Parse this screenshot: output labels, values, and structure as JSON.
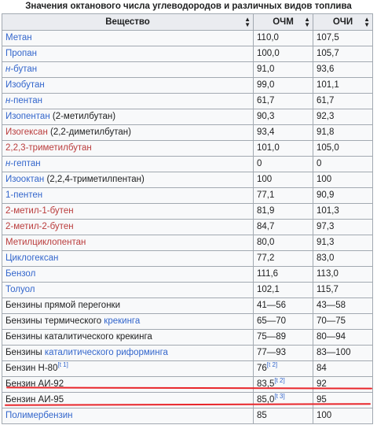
{
  "caption": "Значения октанового числа углеводородов и различных видов топлива",
  "headers": {
    "substance": "Вещество",
    "ron": "ОЧМ",
    "mon": "ОЧИ"
  },
  "rows": [
    {
      "parts": [
        {
          "t": "Метан",
          "c": "lnk"
        }
      ],
      "ron": "110,0",
      "mon": "107,5"
    },
    {
      "parts": [
        {
          "t": "Пропан",
          "c": "lnk"
        }
      ],
      "ron": "100,0",
      "mon": "105,7"
    },
    {
      "parts": [
        {
          "t": "н",
          "c": "lnk",
          "i": true
        },
        {
          "t": "-бутан",
          "c": "lnk"
        }
      ],
      "ron": "91,0",
      "mon": "93,6"
    },
    {
      "parts": [
        {
          "t": "Изобутан",
          "c": "lnk"
        }
      ],
      "ron": "99,0",
      "mon": "101,1"
    },
    {
      "parts": [
        {
          "t": "н",
          "c": "lnk",
          "i": true
        },
        {
          "t": "-пентан",
          "c": "lnk"
        }
      ],
      "ron": "61,7",
      "mon": "61,7"
    },
    {
      "parts": [
        {
          "t": "Изопентан",
          "c": "lnk"
        },
        {
          "t": " (2-метилбутан)",
          "c": "plain"
        }
      ],
      "ron": "90,3",
      "mon": "92,3"
    },
    {
      "parts": [
        {
          "t": "Изогексан",
          "c": "red"
        },
        {
          "t": " (2,2-диметилбутан)",
          "c": "plain"
        }
      ],
      "ron": "93,4",
      "mon": "91,8"
    },
    {
      "parts": [
        {
          "t": "2,2,3-триметилбутан",
          "c": "red"
        }
      ],
      "ron": "101,0",
      "mon": "105,0"
    },
    {
      "parts": [
        {
          "t": "н",
          "c": "lnk",
          "i": true
        },
        {
          "t": "-гептан",
          "c": "lnk"
        }
      ],
      "ron": "0",
      "mon": "0"
    },
    {
      "parts": [
        {
          "t": "Изооктан",
          "c": "lnk"
        },
        {
          "t": " (2,2,4-триметилпентан)",
          "c": "plain"
        }
      ],
      "ron": "100",
      "mon": "100"
    },
    {
      "parts": [
        {
          "t": "1-пентен",
          "c": "lnk"
        }
      ],
      "ron": "77,1",
      "mon": "90,9"
    },
    {
      "parts": [
        {
          "t": "2-метил-1-бутен",
          "c": "red"
        }
      ],
      "ron": "81,9",
      "mon": "101,3"
    },
    {
      "parts": [
        {
          "t": "2-метил-2-бутен",
          "c": "red"
        }
      ],
      "ron": "84,7",
      "mon": "97,3"
    },
    {
      "parts": [
        {
          "t": "Метилциклопентан",
          "c": "red"
        }
      ],
      "ron": "80,0",
      "mon": "91,3"
    },
    {
      "parts": [
        {
          "t": "Циклогексан",
          "c": "lnk"
        }
      ],
      "ron": "77,2",
      "mon": "83,0"
    },
    {
      "parts": [
        {
          "t": "Бензол",
          "c": "lnk"
        }
      ],
      "ron": "111,6",
      "mon": "113,0"
    },
    {
      "parts": [
        {
          "t": "Толуол",
          "c": "lnk"
        }
      ],
      "ron": "102,1",
      "mon": "115,7"
    },
    {
      "parts": [
        {
          "t": "Бензины прямой перегонки",
          "c": "plain"
        }
      ],
      "ron": "41—56",
      "mon": "43—58"
    },
    {
      "parts": [
        {
          "t": "Бензины термического ",
          "c": "plain"
        },
        {
          "t": "крекинга",
          "c": "lnk"
        }
      ],
      "ron": "65—70",
      "mon": "70—75"
    },
    {
      "parts": [
        {
          "t": "Бензины каталитического крекинга",
          "c": "plain"
        }
      ],
      "ron": "75—89",
      "mon": "80—94"
    },
    {
      "parts": [
        {
          "t": "Бензины ",
          "c": "plain"
        },
        {
          "t": "каталитического риформинга",
          "c": "lnk"
        }
      ],
      "ron": "77—93",
      "mon": "83—100"
    },
    {
      "parts": [
        {
          "t": "Бензин Н-80",
          "c": "plain"
        },
        {
          "t": "[t 1]",
          "c": "sup"
        }
      ],
      "ron": "76",
      "ron_sup": "[t 2]",
      "mon": "84"
    },
    {
      "parts": [
        {
          "t": "Бензин АИ-92",
          "c": "plain"
        }
      ],
      "ron": "83,5",
      "ron_sup": "[t 2]",
      "mon": "92"
    },
    {
      "parts": [
        {
          "t": "Бензин АИ-95",
          "c": "plain"
        }
      ],
      "ron": "85,0",
      "ron_sup": "[t 3]",
      "mon": "95"
    },
    {
      "parts": [
        {
          "t": "Полимербензин",
          "c": "lnk"
        }
      ],
      "ron": "85",
      "mon": "100"
    }
  ],
  "colors": {
    "link": "#3366cc",
    "redlink": "#ba3c3c",
    "underline": "#e8262b",
    "header_bg": "#eaecf0",
    "cell_bg": "#f8f9fa",
    "border": "#a2a9b1"
  }
}
